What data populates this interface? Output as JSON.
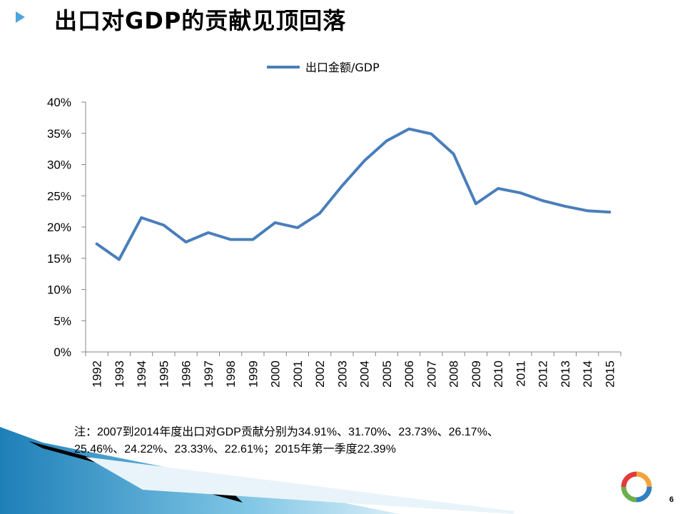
{
  "slide": {
    "title": "出口对GDP的贡献见顶回落",
    "note_line1": "注：2007到2014年度出口对GDP贡献分别为34.91%、31.70%、23.73%、26.17%、",
    "note_line2": "25.46%、24.22%、23.33%、22.61%；2015年第一季度22.39%",
    "page_number": "6"
  },
  "chart_data": {
    "type": "line",
    "legend_position": "top",
    "grid": false,
    "categories": [
      "1992",
      "1993",
      "1994",
      "1995",
      "1996",
      "1997",
      "1998",
      "1999",
      "2000",
      "2001",
      "2002",
      "2003",
      "2004",
      "2005",
      "2006",
      "2007",
      "2008",
      "2009",
      "2010",
      "2011",
      "2012",
      "2013",
      "2014",
      "2015"
    ],
    "series": [
      {
        "name": "出口金额/GDP",
        "color": "#4a7ebb",
        "values": [
          17.3,
          14.8,
          21.5,
          20.3,
          17.6,
          19.1,
          18.0,
          18.0,
          20.7,
          19.9,
          22.2,
          26.6,
          30.6,
          33.8,
          35.7,
          34.91,
          31.7,
          23.73,
          26.17,
          25.46,
          24.22,
          23.33,
          22.61,
          22.39
        ]
      }
    ],
    "ylim": [
      0,
      40
    ],
    "yticks": [
      "0%",
      "5%",
      "10%",
      "15%",
      "20%",
      "25%",
      "30%",
      "35%",
      "40%"
    ],
    "ytick_values": [
      0,
      5,
      10,
      15,
      20,
      25,
      30,
      35,
      40
    ]
  }
}
